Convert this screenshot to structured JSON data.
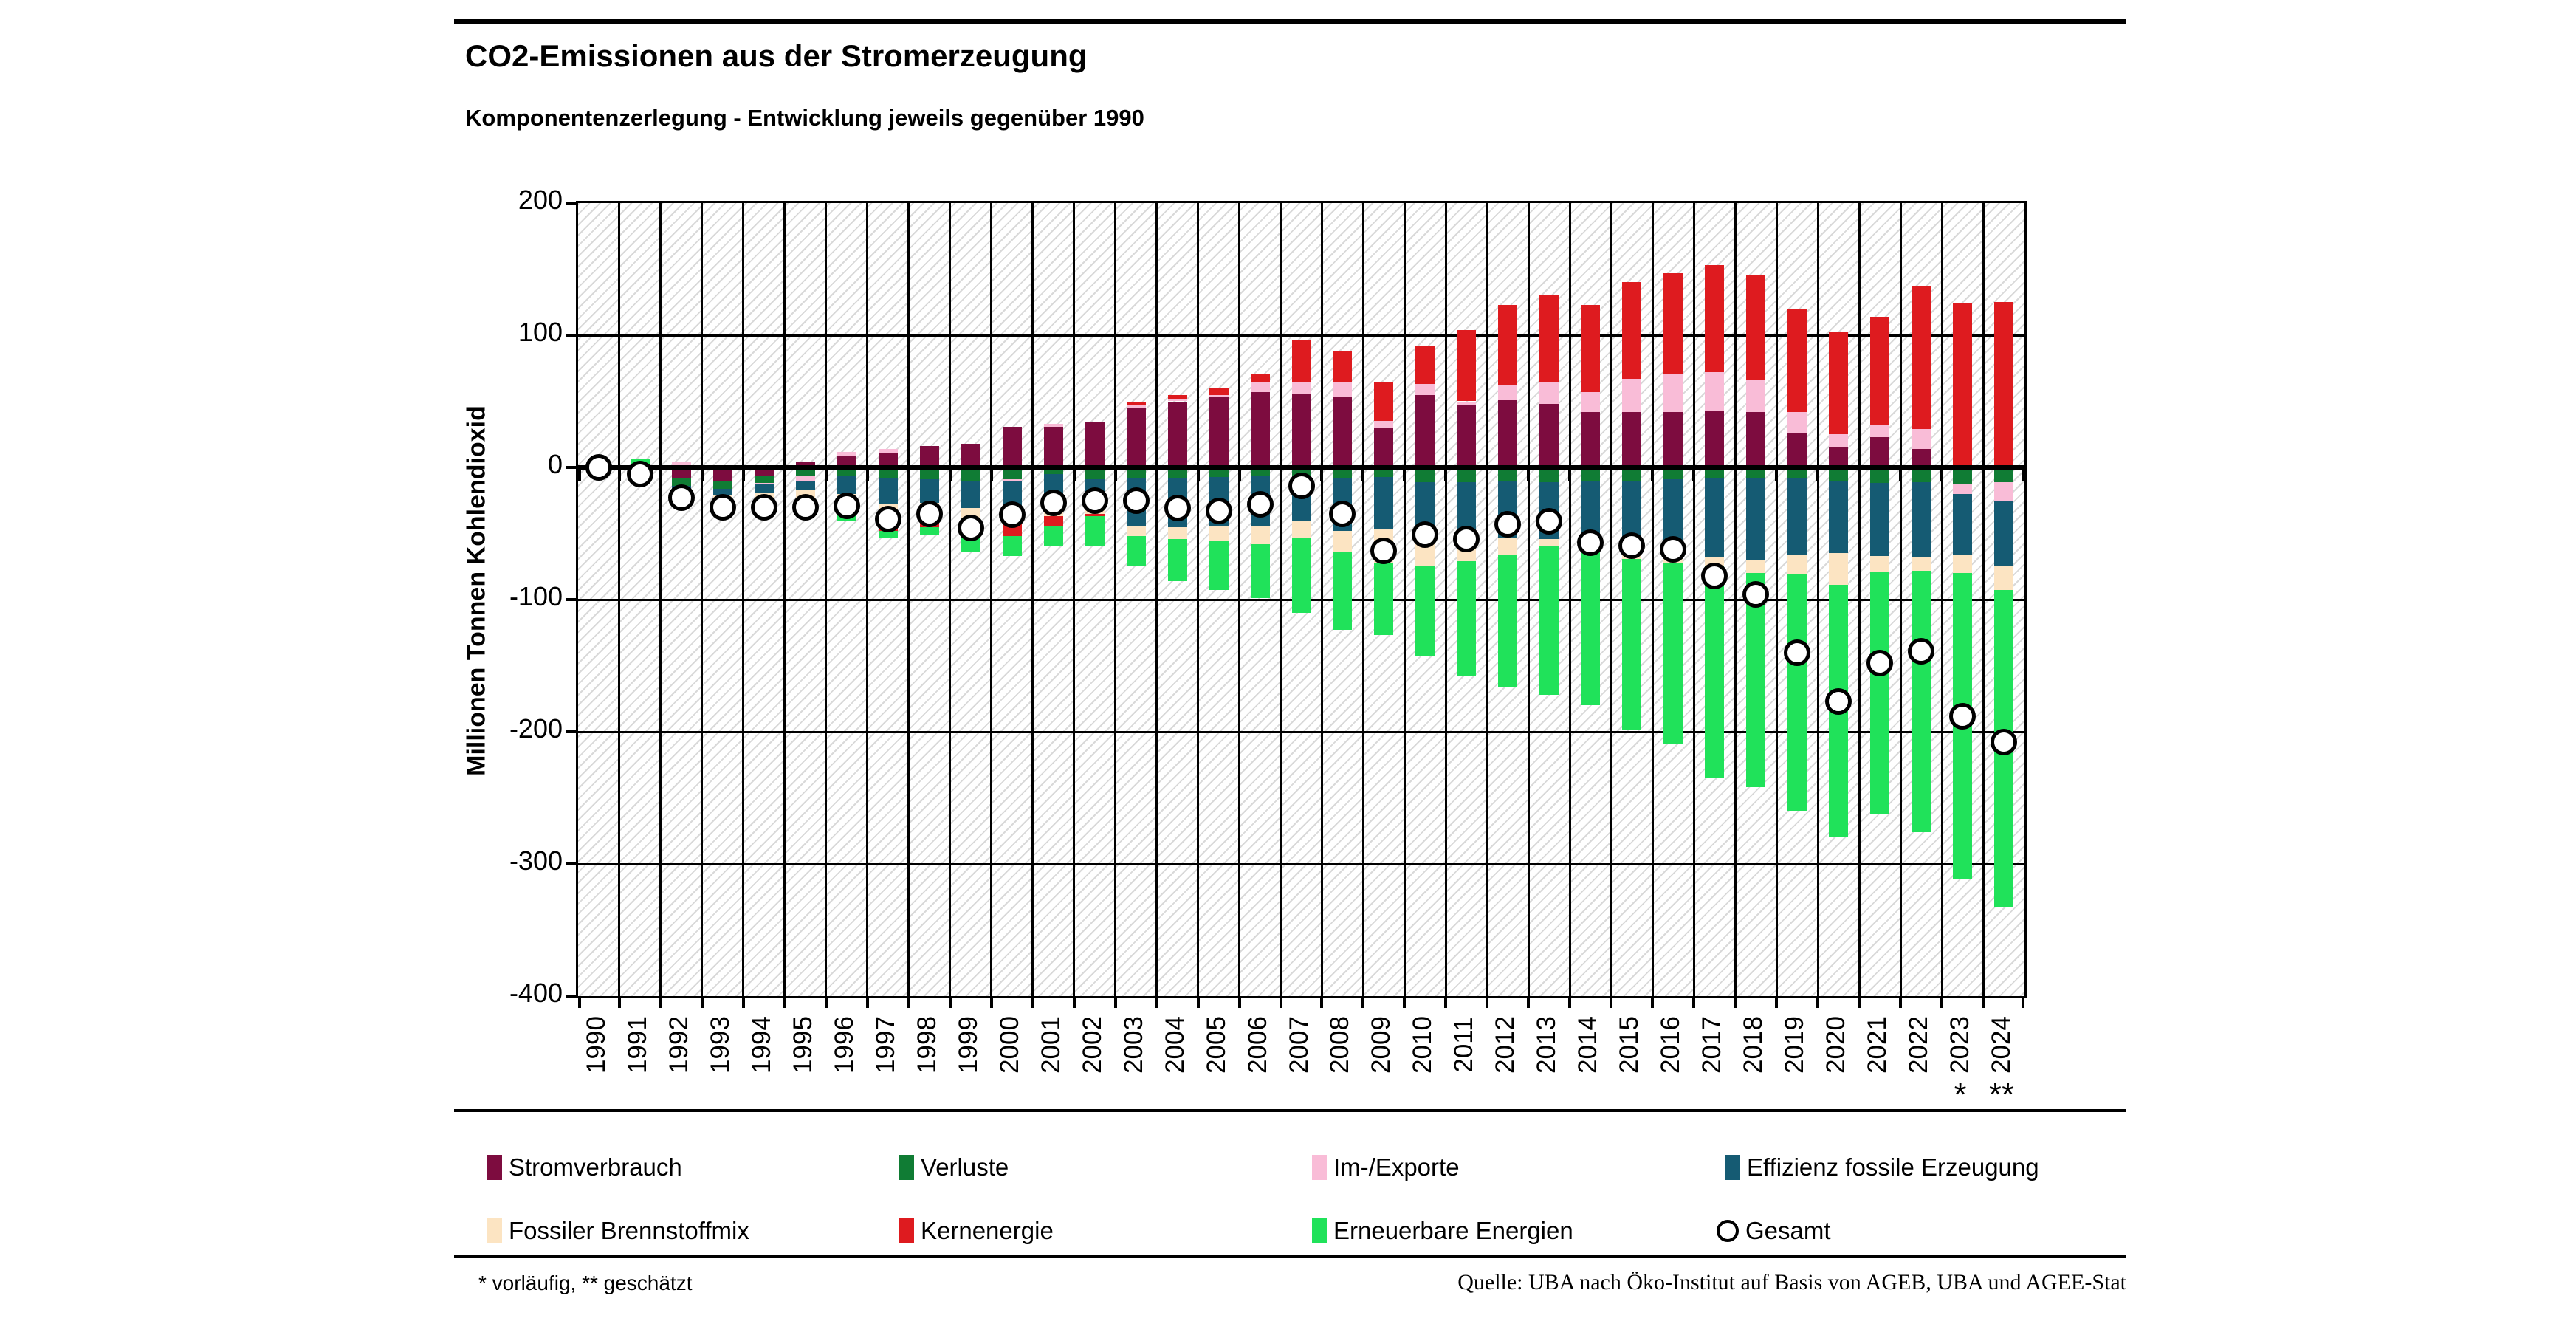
{
  "header": {
    "title": "CO2-Emissionen aus der Stromerzeugung",
    "subtitle": "Komponentenzerlegung - Entwicklung jeweils gegenüber 1990"
  },
  "footer": {
    "note": "* vorläufig, ** geschätzt",
    "source": "Quelle: UBA nach Öko-Institut auf Basis von AGEB, UBA und AGEE-Stat"
  },
  "chart_data": {
    "type": "bar",
    "stacked": true,
    "title": "CO2-Emissionen aus der Stromerzeugung",
    "subtitle": "Komponentenzerlegung - Entwicklung jeweils gegenüber 1990",
    "xlabel": "",
    "ylabel": "Millionen Tonnen Kohlendioxid",
    "ylim": [
      -400,
      200
    ],
    "ytick_step": 100,
    "yticks": [
      200,
      100,
      0,
      -100,
      -200,
      -300,
      -400
    ],
    "grid": true,
    "legend_position": "bottom",
    "categories": [
      "1990",
      "1991",
      "1992",
      "1993",
      "1994",
      "1995",
      "1996",
      "1997",
      "1998",
      "1999",
      "2000",
      "2001",
      "2002",
      "2003",
      "2004",
      "2005",
      "2006",
      "2007",
      "2008",
      "2009",
      "2010",
      "2011",
      "2012",
      "2013",
      "2014",
      "2015",
      "2016",
      "2017",
      "2018",
      "2019",
      "2020",
      "2021",
      "2022",
      "2023",
      "2024"
    ],
    "category_flags": {
      "2023": "*",
      "2024": "**"
    },
    "series": [
      {
        "name": "Stromverbrauch",
        "color": "#7D0C3F",
        "values": [
          0,
          -6,
          -8,
          -10,
          -6,
          4,
          9,
          11,
          16,
          18,
          31,
          31,
          34,
          45,
          50,
          53,
          57,
          56,
          53,
          30,
          55,
          47,
          51,
          48,
          42,
          42,
          42,
          43,
          42,
          26,
          15,
          23,
          14,
          0,
          0
        ]
      },
      {
        "name": "Verluste",
        "color": "#107C34",
        "values": [
          0,
          -1,
          -6,
          -6,
          -6,
          -6,
          -6,
          -8,
          -9,
          -10,
          -9,
          -5,
          -9,
          -8,
          -8,
          -7,
          -6,
          -6,
          -8,
          -7,
          -11,
          -11,
          -10,
          -11,
          -10,
          -10,
          -9,
          -8,
          -8,
          -8,
          -10,
          -12,
          -11,
          -13,
          -11
        ]
      },
      {
        "name": "Im-/Exporte",
        "color": "#F9BCD7",
        "values": [
          0,
          0,
          4,
          0,
          -1,
          -4,
          3,
          3,
          0,
          0,
          -1,
          2,
          0,
          2,
          2,
          2,
          8,
          9,
          11,
          5,
          8,
          3,
          11,
          17,
          15,
          25,
          29,
          29,
          24,
          16,
          10,
          9,
          15,
          -7,
          -14
        ]
      },
      {
        "name": "Effizienz fossile Erzeugung",
        "color": "#155B73",
        "values": [
          0,
          -2,
          -6,
          -5,
          -6,
          -7,
          -14,
          -20,
          -18,
          -21,
          -21,
          -26,
          -22,
          -36,
          -37,
          -37,
          -38,
          -35,
          -40,
          -40,
          -40,
          -41,
          -43,
          -43,
          -46,
          -53,
          -58,
          -60,
          -62,
          -58,
          -55,
          -55,
          -57,
          -46,
          -50
        ]
      },
      {
        "name": "Fossiler Brennstoffmix",
        "color": "#FCE4C2",
        "values": [
          0,
          -2,
          -3,
          -4,
          -5,
          -8,
          -14,
          -16,
          -14,
          -12,
          -8,
          -6,
          -4,
          -8,
          -9,
          -12,
          -14,
          -12,
          -16,
          -25,
          -24,
          -19,
          -13,
          -6,
          -6,
          -6,
          -5,
          -7,
          -10,
          -15,
          -24,
          -12,
          -10,
          -14,
          -18
        ]
      },
      {
        "name": "Kernenergie",
        "color": "#DE1B1F",
        "values": [
          0,
          2,
          -2,
          -2,
          -3,
          -3,
          -2,
          -4,
          -4,
          -3,
          -13,
          -7,
          -2,
          3,
          3,
          5,
          6,
          31,
          24,
          29,
          29,
          54,
          61,
          66,
          66,
          73,
          76,
          81,
          80,
          78,
          78,
          82,
          108,
          124,
          125
        ]
      },
      {
        "name": "Erneuerbare Energien",
        "color": "#20E25A",
        "values": [
          0,
          4,
          -2,
          -3,
          -3,
          -6,
          -5,
          -5,
          -6,
          -18,
          -15,
          -16,
          -22,
          -23,
          -32,
          -37,
          -41,
          -57,
          -59,
          -55,
          -68,
          -87,
          -100,
          -112,
          -118,
          -130,
          -137,
          -160,
          -162,
          -179,
          -191,
          -183,
          -198,
          -232,
          -240
        ]
      }
    ],
    "total_series": {
      "name": "Gesamt",
      "marker": "circle",
      "marker_fill": "#ffffff",
      "marker_stroke": "#000000",
      "values": [
        0,
        -5,
        -23,
        -30,
        -30,
        -30,
        -29,
        -39,
        -35,
        -46,
        -36,
        -27,
        -25,
        -25,
        -31,
        -33,
        -28,
        -14,
        -35,
        -63,
        -51,
        -54,
        -43,
        -41,
        -57,
        -59,
        -62,
        -82,
        -96,
        -140,
        -177,
        -148,
        -139,
        -188,
        -208
      ]
    }
  }
}
